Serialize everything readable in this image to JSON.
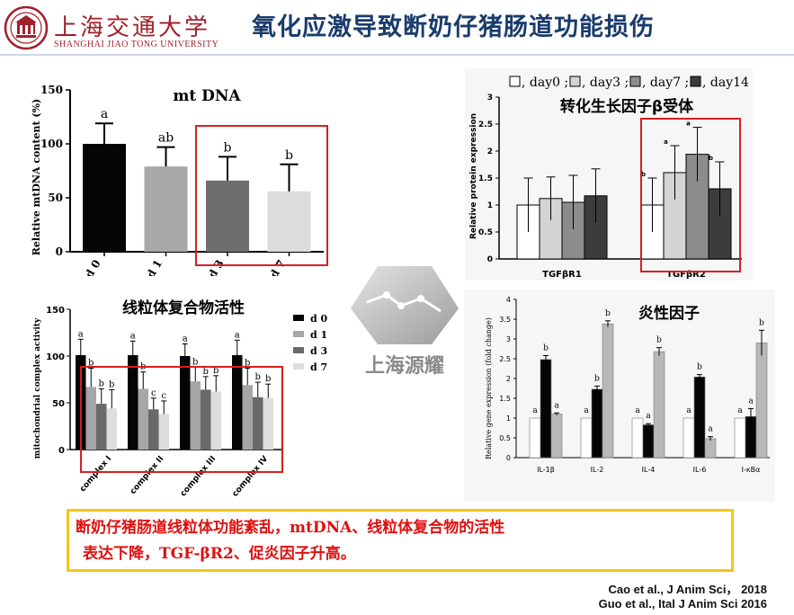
{
  "header": {
    "logo_cn": "上海交通大学",
    "logo_en": "SHANGHAI JIAO TONG UNIVERSITY",
    "title": "氧化应激导致断奶仔猪肠道功能损伤"
  },
  "watermark": {
    "text": "上海源耀"
  },
  "chart_data": [
    {
      "type": "bar",
      "title": "mt DNA",
      "ylabel": "Relative mtDNA content (%)",
      "categories": [
        "d 0",
        "d 1",
        "d 3",
        "d 7"
      ],
      "values": [
        100,
        79,
        66,
        56
      ],
      "errors": [
        19,
        18,
        22,
        25
      ],
      "letters": [
        "a",
        "ab",
        "b",
        "b"
      ],
      "ylim": [
        0,
        150
      ],
      "yticks": [
        "0",
        "50",
        "100",
        "150"
      ],
      "colors": [
        "#050505",
        "#a8a8a8",
        "#6e6e6e",
        "#dcdcdc"
      ]
    },
    {
      "type": "bar",
      "title": "转化生长因子β受体",
      "ylabel": "Relative protein expression",
      "categories": [
        "TGFβR1",
        "TGFβR2"
      ],
      "legend": [
        "day0",
        "day3",
        "day7",
        "day14"
      ],
      "legend_separator": ";",
      "series": [
        {
          "name": "day0",
          "values": [
            1.0,
            1.0
          ],
          "errors": [
            0.5,
            0.5
          ],
          "letters": [
            "",
            "b"
          ]
        },
        {
          "name": "day3",
          "values": [
            1.12,
            1.6
          ],
          "errors": [
            0.4,
            0.5
          ],
          "letters": [
            "",
            "a"
          ]
        },
        {
          "name": "day7",
          "values": [
            1.05,
            1.94
          ],
          "errors": [
            0.5,
            0.5
          ],
          "letters": [
            "",
            "a"
          ]
        },
        {
          "name": "day14",
          "values": [
            1.17,
            1.3
          ],
          "errors": [
            0.5,
            0.5
          ],
          "letters": [
            "",
            "b"
          ]
        }
      ],
      "ylim": [
        0,
        3
      ],
      "yticks": [
        "0",
        "0.5",
        "1",
        "1.5",
        "2",
        "2.5",
        "3"
      ],
      "colors": [
        "#ffffff",
        "#d4d4d4",
        "#8c8c8c",
        "#3c3c3c"
      ]
    },
    {
      "type": "bar",
      "title": "线粒体复合物活性",
      "ylabel": "mitochondrial complex activity",
      "categories": [
        "complex I",
        "complex II",
        "complex III",
        "complex IV"
      ],
      "legend": [
        "d 0",
        "d 1",
        "d 3",
        "d 7"
      ],
      "series": [
        {
          "name": "d 0",
          "values": [
            101,
            101,
            100,
            101
          ],
          "errors": [
            17,
            15,
            13,
            16
          ],
          "letters": [
            "a",
            "a",
            "a",
            "a"
          ]
        },
        {
          "name": "d 1",
          "values": [
            67,
            65,
            73,
            69
          ],
          "errors": [
            20,
            18,
            15,
            18
          ],
          "letters": [
            "b",
            "b",
            "b",
            "b"
          ]
        },
        {
          "name": "d 3",
          "values": [
            49,
            43,
            64,
            56
          ],
          "errors": [
            16,
            12,
            14,
            16
          ],
          "letters": [
            "b",
            "c",
            "b",
            "b"
          ]
        },
        {
          "name": "d 7",
          "values": [
            44,
            38,
            62,
            55
          ],
          "errors": [
            20,
            14,
            17,
            15
          ],
          "letters": [
            "b",
            "c",
            "b",
            "b"
          ]
        }
      ],
      "ylim": [
        0,
        150
      ],
      "yticks": [
        "0",
        "50",
        "100",
        "150"
      ],
      "colors": [
        "#050505",
        "#a6a6a6",
        "#6a6a6a",
        "#dddddd"
      ]
    },
    {
      "type": "bar",
      "title": "炎性因子",
      "ylabel": "Relative gene expression (fold change)",
      "categories": [
        "IL-1β",
        "IL-2",
        "IL-4",
        "IL-6",
        "I-κBα"
      ],
      "series": [
        {
          "values": [
            1.0,
            1.0,
            1.0,
            1.0,
            1.0
          ],
          "errors": [
            0,
            0,
            0,
            0,
            0
          ],
          "letters": [
            "a",
            "a",
            "a",
            "a",
            "a"
          ]
        },
        {
          "values": [
            2.48,
            1.73,
            0.83,
            2.04,
            1.04
          ],
          "errors": [
            0.1,
            0.08,
            0.03,
            0.06,
            0.2
          ],
          "letters": [
            "b",
            "b",
            "a",
            "b",
            "a"
          ]
        },
        {
          "values": [
            1.1,
            3.38,
            2.68,
            0.48,
            2.9
          ],
          "errors": [
            0.03,
            0.08,
            0.1,
            0.05,
            0.32
          ],
          "letters": [
            "a",
            "b",
            "b",
            "a",
            "b"
          ]
        }
      ],
      "ylim": [
        0,
        4
      ],
      "yticks": [
        "0",
        "0.5",
        "1",
        "1.5",
        "2",
        "2.5",
        "3",
        "3.5",
        "4"
      ],
      "colors": [
        "#ffffff",
        "#050505",
        "#b8b8b8"
      ]
    }
  ],
  "summary": {
    "line1": "断奶仔猪肠道线粒体功能紊乱，mtDNA、线粒体复合物的活性",
    "line2": "表达下降，TGF-βR2、促炎因子升高。"
  },
  "references": [
    "Cao et al., J Anim Sci， 2018",
    "Guo et al., Ital J Anim Sci 2016"
  ]
}
